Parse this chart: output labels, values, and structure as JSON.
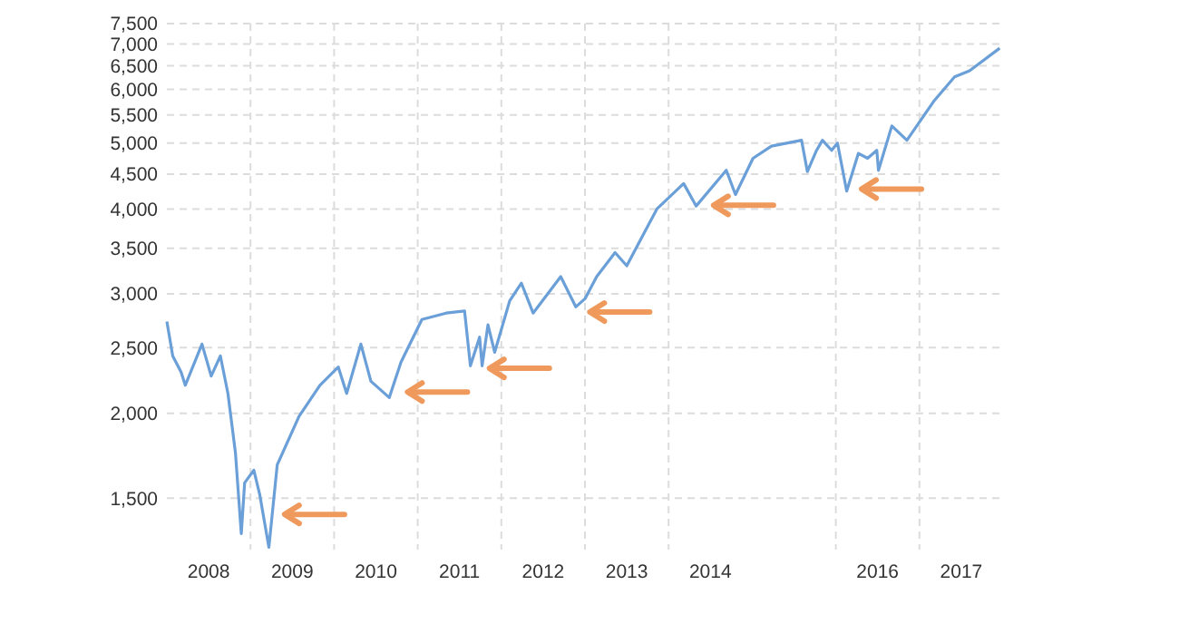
{
  "chart_data": {
    "type": "line",
    "log": "y",
    "grid": true,
    "line_style": "solid",
    "xlim": [
      2008,
      2018
    ],
    "ylim": [
      1260,
      7500
    ],
    "yticks": [
      {
        "value": 1500,
        "label": "1,500"
      },
      {
        "value": 2000,
        "label": "2,000"
      },
      {
        "value": 2500,
        "label": "2,500"
      },
      {
        "value": 3000,
        "label": "3,000"
      },
      {
        "value": 3500,
        "label": "3,500"
      },
      {
        "value": 4000,
        "label": "4,000"
      },
      {
        "value": 4500,
        "label": "4,500"
      },
      {
        "value": 5000,
        "label": "5,000"
      },
      {
        "value": 5500,
        "label": "5,500"
      },
      {
        "value": 6000,
        "label": "6,000"
      },
      {
        "value": 6500,
        "label": "6,500"
      },
      {
        "value": 7000,
        "label": "7,000"
      },
      {
        "value": 7500,
        "label": "7,500"
      }
    ],
    "xticks": [
      {
        "value": 2009,
        "label": null
      },
      {
        "value": 2010,
        "label": null
      },
      {
        "value": 2011,
        "label": null
      },
      {
        "value": 2012,
        "label": null
      },
      {
        "value": 2013,
        "label": null
      },
      {
        "value": 2014,
        "label": null
      },
      {
        "value": 2016,
        "label": null
      },
      {
        "value": 2017,
        "label": null
      },
      {
        "value": 2008.5,
        "label": "2008"
      },
      {
        "value": 2009.5,
        "label": "2009"
      },
      {
        "value": 2010.5,
        "label": "2010"
      },
      {
        "value": 2011.5,
        "label": "2011"
      },
      {
        "value": 2012.5,
        "label": "2012"
      },
      {
        "value": 2013.5,
        "label": "2013"
      },
      {
        "value": 2014.5,
        "label": "2014"
      },
      {
        "value": 2016.5,
        "label": "2016"
      },
      {
        "value": 2017.5,
        "label": "2017"
      }
    ],
    "x": [
      2008.0,
      2008.07,
      2008.17,
      2008.22,
      2008.42,
      2008.53,
      2008.64,
      2008.73,
      2008.82,
      2008.89,
      2008.93,
      2009.04,
      2009.11,
      2009.22,
      2009.32,
      2009.58,
      2009.83,
      2010.05,
      2010.15,
      2010.32,
      2010.44,
      2010.66,
      2010.8,
      2011.05,
      2011.34,
      2011.56,
      2011.63,
      2011.74,
      2011.77,
      2011.84,
      2011.92,
      2012.1,
      2012.24,
      2012.38,
      2012.71,
      2012.89,
      2013.0,
      2013.14,
      2013.36,
      2013.5,
      2013.86,
      2014.18,
      2014.33,
      2014.69,
      2014.8,
      2015.01,
      2015.23,
      2015.59,
      2015.66,
      2015.77,
      2015.84,
      2015.95,
      2016.02,
      2016.13,
      2016.27,
      2016.38,
      2016.49,
      2016.51,
      2016.67,
      2016.85,
      2017.17,
      2017.42,
      2017.6,
      2017.96
    ],
    "series": [
      {
        "color": "#6a9fd8",
        "values": [
          2730,
          2430,
          2300,
          2200,
          2530,
          2270,
          2430,
          2140,
          1750,
          1330,
          1580,
          1650,
          1520,
          1270,
          1680,
          1980,
          2200,
          2340,
          2140,
          2530,
          2230,
          2110,
          2380,
          2750,
          2810,
          2830,
          2350,
          2590,
          2350,
          2700,
          2460,
          2930,
          3110,
          2810,
          3180,
          2870,
          2950,
          3180,
          3450,
          3300,
          4000,
          4360,
          4040,
          4560,
          4200,
          4750,
          4950,
          5050,
          4540,
          4880,
          5050,
          4880,
          5000,
          4250,
          4830,
          4750,
          4880,
          4560,
          5300,
          5050,
          5760,
          6260,
          6390,
          6900
        ]
      }
    ]
  }
}
